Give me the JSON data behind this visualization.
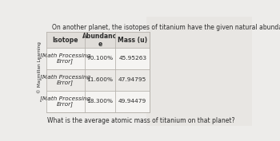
{
  "title": "On another planet, the isotopes of titanium have the given natural abundances.",
  "copyright": "© Macmillan Learning",
  "question": "What is the average atomic mass of titanium on that planet?",
  "col_headers": [
    "Isotope",
    "Abundanc\ne",
    "Mass (u)"
  ],
  "rows": [
    [
      "[Math Processing\nError]",
      "70.100%",
      "45.95263"
    ],
    [
      "[Math Processing\nError]",
      "11.600%",
      "47.94795"
    ],
    [
      "[Math Processing\nError]",
      "18.300%",
      "49.94479"
    ]
  ],
  "bg_color": "#edecea",
  "table_bg": "#f5f4f2",
  "header_bg": "#e0ddd9",
  "cell_alt_bg": "#ebe9e6",
  "text_color": "#2b2b2b",
  "border_color": "#b8b4ae",
  "right_bg": "#e8e6e3",
  "title_fontsize": 5.5,
  "header_fontsize": 5.5,
  "cell_fontsize": 5.3,
  "copyright_fontsize": 4.2,
  "question_fontsize": 5.5
}
